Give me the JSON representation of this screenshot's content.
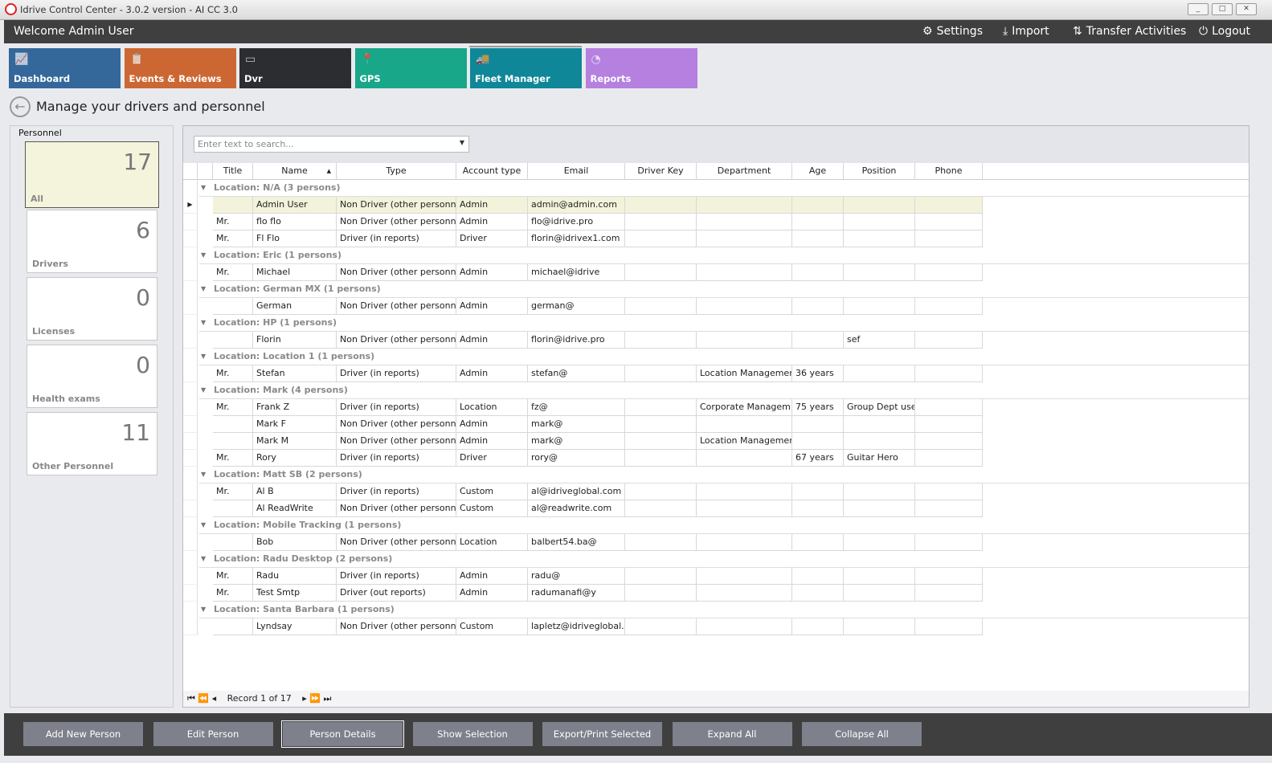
{
  "window": {
    "title": "Idrive Control Center - 3.0.2 version - AI CC 3.0",
    "min": "_",
    "max": "□",
    "close": "✕"
  },
  "topbar": {
    "welcome": "Welcome Admin User",
    "settings": "Settings",
    "import": "Import",
    "transfer": "Transfer Activities",
    "logout": "Logout"
  },
  "tiles": [
    {
      "label": "Dashboard",
      "color": "#34679a",
      "icon": "chart-icon"
    },
    {
      "label": "Events & Reviews",
      "color": "#cc6733",
      "icon": "clipboard-icon"
    },
    {
      "label": "Dvr",
      "color": "#2b2d31",
      "icon": "dvr-icon"
    },
    {
      "label": "GPS",
      "color": "#19a78a",
      "icon": "pin-icon"
    },
    {
      "label": "Fleet Manager",
      "color": "#0f8799",
      "icon": "trucks-icon"
    },
    {
      "label": "Reports",
      "color": "#b580e0",
      "icon": "pie-icon"
    }
  ],
  "page": {
    "title": "Manage your drivers and personnel"
  },
  "sidebar": {
    "header": "Personnel",
    "cards": [
      {
        "count": "17",
        "label": "All",
        "selected": true
      },
      {
        "count": "6",
        "label": "Drivers"
      },
      {
        "count": "0",
        "label": "Licenses"
      },
      {
        "count": "0",
        "label": "Health exams"
      },
      {
        "count": "11",
        "label": "Other Personnel"
      }
    ]
  },
  "grid": {
    "search_placeholder": "Enter text to search...",
    "columns": [
      "Title",
      "Name",
      "Type",
      "Account type",
      "Email",
      "Driver Key",
      "Department",
      "Age",
      "Position",
      "Phone"
    ],
    "sorted_column": "Name",
    "groups": [
      {
        "label": "Location: N/A (3 persons)",
        "rows": [
          [
            "",
            "Admin User",
            "Non Driver (other personnel)",
            "Admin",
            "admin@admin.com",
            "",
            "",
            "",
            "",
            ""
          ],
          [
            "Mr.",
            "flo flo",
            "Non Driver (other personnel)",
            "Admin",
            "flo@idrive.pro",
            "",
            "",
            "",
            "",
            ""
          ],
          [
            "Mr.",
            "Fl Flo",
            "Driver (in reports)",
            "Driver",
            "florin@idrivex1.com",
            "",
            "",
            "",
            "",
            ""
          ]
        ]
      },
      {
        "label": "Location: Eric (1 persons)",
        "rows": [
          [
            "Mr.",
            "Michael",
            "Non Driver (other personnel)",
            "Admin",
            "michael@idrive",
            "",
            "",
            "",
            "",
            ""
          ]
        ]
      },
      {
        "label": "Location: German MX (1 persons)",
        "rows": [
          [
            "",
            "German",
            "Non Driver (other personnel)",
            "Admin",
            "german@",
            "",
            "",
            "",
            "",
            ""
          ]
        ]
      },
      {
        "label": "Location: HP (1 persons)",
        "rows": [
          [
            "",
            "Florin",
            "Non Driver (other personnel)",
            "Admin",
            "florin@idrive.pro",
            "",
            "",
            "",
            "sef",
            ""
          ]
        ]
      },
      {
        "label": "Location: Location 1 (1 persons)",
        "rows": [
          [
            "Mr.",
            "Stefan",
            "Driver (in reports)",
            "Admin",
            "stefan@",
            "",
            "Location Management",
            "36 years",
            "",
            ""
          ]
        ]
      },
      {
        "label": "Location: Mark (4 persons)",
        "rows": [
          [
            "Mr.",
            "Frank Z",
            "Driver (in reports)",
            "Location",
            "fz@",
            "",
            "Corporate Managem...",
            "75 years",
            "Group Dept user",
            ""
          ],
          [
            "",
            "Mark F",
            "Non Driver (other personnel)",
            "Admin",
            "mark@",
            "",
            "",
            "",
            "",
            ""
          ],
          [
            "",
            "Mark M",
            "Non Driver (other personnel)",
            "Admin",
            "mark@",
            "",
            "Location Management",
            "",
            "",
            ""
          ],
          [
            "Mr.",
            "Rory",
            "Driver (in reports)",
            "Driver",
            "rory@",
            "",
            "",
            "67 years",
            "Guitar Hero",
            ""
          ]
        ]
      },
      {
        "label": "Location: Matt SB (2 persons)",
        "rows": [
          [
            "Mr.",
            "Al B",
            "Driver (in reports)",
            "Custom",
            "al@idriveglobal.com",
            "",
            "",
            "",
            "",
            ""
          ],
          [
            "",
            "Al ReadWrite",
            "Non Driver (other personnel)",
            "Custom",
            "al@readwrite.com",
            "",
            "",
            "",
            "",
            ""
          ]
        ]
      },
      {
        "label": "Location: Mobile Tracking (1 persons)",
        "rows": [
          [
            "",
            "Bob",
            "Non Driver (other personnel)",
            "Location",
            "balbert54.ba@",
            "",
            "",
            "",
            "",
            ""
          ]
        ]
      },
      {
        "label": "Location: Radu Desktop (2 persons)",
        "rows": [
          [
            "Mr.",
            "Radu",
            "Driver (in reports)",
            "Admin",
            "radu@",
            "",
            "",
            "",
            "",
            ""
          ],
          [
            "Mr.",
            "Test Smtp",
            "Driver (out reports)",
            "Admin",
            "radumanafi@y",
            "",
            "",
            "",
            "",
            ""
          ]
        ]
      },
      {
        "label": "Location: Santa Barbara (1 persons)",
        "rows": [
          [
            "",
            "Lyndsay",
            "Non Driver (other personnel)",
            "Custom",
            "lapletz@idriveglobal....",
            "",
            "",
            "",
            "",
            ""
          ]
        ]
      }
    ],
    "record_text": "Record 1 of 17"
  },
  "actions": [
    "Add New Person",
    "Edit Person",
    "Person Details",
    "Show Selection",
    "Export/Print Selected",
    "Expand All",
    "Collapse All"
  ],
  "selected_action": "Person Details"
}
